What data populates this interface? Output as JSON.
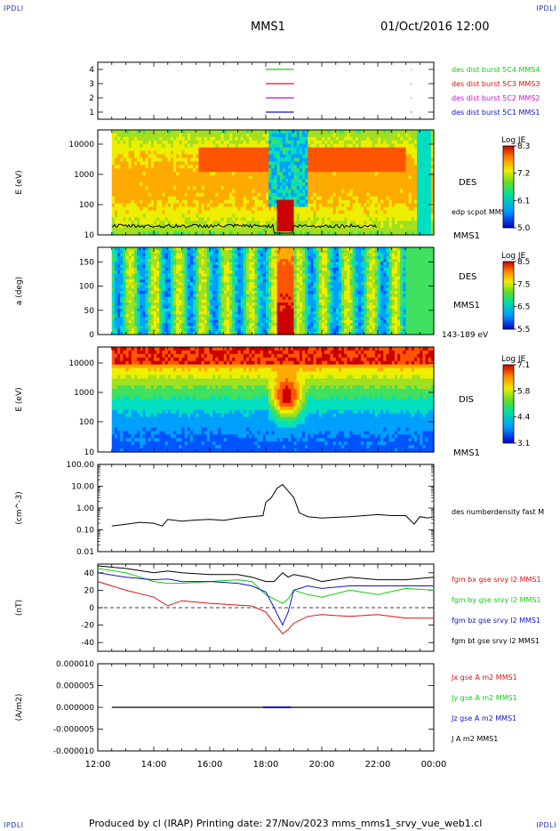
{
  "header": {
    "corner_tl": "IPDLI",
    "corner_tr": "IPDLI",
    "corner_bl": "IPDLI",
    "corner_br": "IPDLI",
    "title": "MMS1",
    "datetime": "01/Oct/2016 12:00"
  },
  "footer": "Produced by cl (IRAP)   Printing date: 27/Nov/2023   mms_mms1_srvy_vue_web1.cl",
  "colors": {
    "red": "#dd1111",
    "green": "#11cc11",
    "blue": "#1111cc",
    "magenta": "#cc11cc",
    "black": "#000000"
  },
  "chart_data": [
    {
      "type": "line",
      "panel": "burst-availability",
      "yticks": [
        "1",
        "2",
        "3",
        "4"
      ],
      "ylim": [
        0.5,
        4.5
      ],
      "series": [
        {
          "name": "des dist burst 5C1 MMS1",
          "level": 1,
          "color": "blue"
        },
        {
          "name": "des dist burst 5C2 MMS2",
          "level": 2,
          "color": "magenta"
        },
        {
          "name": "des dist burst 5C3 MMS3",
          "level": 3,
          "color": "red"
        },
        {
          "name": "des dist burst 5C4 MMS4",
          "level": 4,
          "color": "green"
        }
      ],
      "segments_hours": [
        18.0,
        19.0
      ]
    },
    {
      "type": "heatmap",
      "panel": "des-energy",
      "ylabel": "E (eV)",
      "yscale": "log",
      "yticks": [
        "10",
        "100",
        "1000",
        "10000"
      ],
      "label": "DES",
      "sublabel": "MMS1",
      "overlay_label": "edp scpot MMS1",
      "colorbar": {
        "title": "Log JE",
        "ticks": [
          "8.3",
          "7.2",
          "6.1",
          "5.0"
        ]
      }
    },
    {
      "type": "heatmap",
      "panel": "des-pitch-angle",
      "ylabel": "a (deg)",
      "yticks": [
        "0",
        "50",
        "100",
        "150"
      ],
      "ylim": [
        0,
        180
      ],
      "label": "DES",
      "sublabel": "MMS1",
      "energy_label": "143-189 eV",
      "colorbar": {
        "title": "Log JE",
        "ticks": [
          "8.5",
          "7.5",
          "6.5",
          "5.5"
        ]
      }
    },
    {
      "type": "heatmap",
      "panel": "dis-energy",
      "ylabel": "E (eV)",
      "yscale": "log",
      "yticks": [
        "10",
        "100",
        "1000",
        "10000"
      ],
      "label": "DIS",
      "sublabel": "MMS1",
      "colorbar": {
        "title": "Log JE",
        "ticks": [
          "7.1",
          "5.8",
          "4.4",
          "3.1"
        ]
      }
    },
    {
      "type": "line",
      "panel": "density",
      "ylabel": "(cm^-3)",
      "yscale": "log",
      "yticks": [
        "100.00",
        "10.00",
        "1.00",
        "0.10",
        "0.01"
      ],
      "series_label": "des numberdensity fast M",
      "x_hours": [
        12.5,
        13,
        13.5,
        14,
        14.3,
        14.5,
        15,
        15.5,
        16,
        16.5,
        17,
        17.5,
        17.9,
        18.0,
        18.2,
        18.4,
        18.6,
        18.8,
        19.0,
        19.2,
        19.5,
        20,
        21,
        22,
        22.5,
        23,
        23.3,
        23.5,
        23.8,
        24
      ],
      "values": [
        0.15,
        0.18,
        0.22,
        0.2,
        0.15,
        0.3,
        0.25,
        0.28,
        0.3,
        0.27,
        0.35,
        0.4,
        0.45,
        1.8,
        3.0,
        8.0,
        12.0,
        6.0,
        3.0,
        0.6,
        0.4,
        0.35,
        0.4,
        0.5,
        0.45,
        0.45,
        0.18,
        0.4,
        0.35,
        0.4
      ]
    },
    {
      "type": "line",
      "panel": "magnetic-field",
      "ylabel": "(nT)",
      "yticks": [
        "40",
        "20",
        "0",
        "-20",
        "-40"
      ],
      "ylim": [
        -50,
        50
      ],
      "x_hours": [
        12,
        13,
        14,
        14.5,
        15,
        16,
        17,
        17.5,
        18,
        18.3,
        18.6,
        18.8,
        19,
        19.5,
        20,
        21,
        22,
        23,
        24
      ],
      "series": [
        {
          "name": "fgm bx gse srvy l2 MMS1",
          "color": "red",
          "values": [
            30,
            20,
            12,
            2,
            8,
            5,
            3,
            2,
            -5,
            -18,
            -30,
            -25,
            -18,
            -10,
            -8,
            -10,
            -8,
            -12,
            -12
          ]
        },
        {
          "name": "fgm by gse srvy l2 MMS1",
          "color": "green",
          "values": [
            45,
            40,
            30,
            28,
            28,
            30,
            32,
            30,
            15,
            10,
            5,
            10,
            20,
            15,
            12,
            20,
            15,
            22,
            20
          ]
        },
        {
          "name": "fgm bz gse srvy l2 MMS1",
          "color": "blue",
          "values": [
            40,
            35,
            32,
            33,
            30,
            30,
            28,
            25,
            18,
            0,
            -20,
            -5,
            20,
            25,
            22,
            25,
            25,
            25,
            25
          ]
        },
        {
          "name": "fgm bt gse srvy l2 MMS1",
          "color": "black",
          "values": [
            48,
            45,
            40,
            42,
            40,
            38,
            38,
            35,
            30,
            30,
            40,
            35,
            38,
            35,
            30,
            35,
            32,
            32,
            35
          ]
        }
      ]
    },
    {
      "type": "line",
      "panel": "current-density",
      "ylabel": "(A/m2)",
      "yticks": [
        "0.000010",
        "0.000005",
        "0.000000",
        "-0.000005",
        "-0.000010"
      ],
      "ylim": [
        -1e-05,
        1e-05
      ],
      "series": [
        {
          "name": "Jx gse A m2 MMS1",
          "color": "red"
        },
        {
          "name": "Jy gse A m2 MMS1",
          "color": "green"
        },
        {
          "name": "Jz gse A m2 MMS1",
          "color": "blue"
        },
        {
          "name": "J A m2 MMS1",
          "color": "black"
        }
      ]
    }
  ],
  "xaxis": {
    "ticks": [
      "12:00",
      "14:00",
      "16:00",
      "18:00",
      "20:00",
      "22:00",
      "00:00"
    ]
  }
}
